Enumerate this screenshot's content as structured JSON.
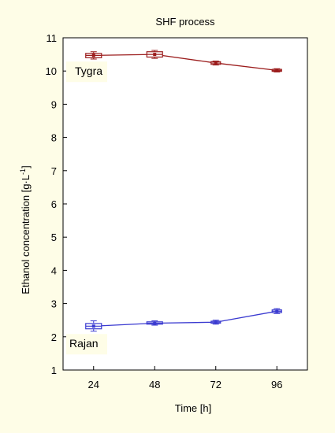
{
  "chart_data": {
    "type": "line",
    "title": "SHF process",
    "xlabel": "Time [h]",
    "ylabel_main": "Ethanol concentration ",
    "ylabel_unit": "[g·L",
    "ylabel_exp": "-1",
    "ylabel_close": "]",
    "x": [
      24,
      48,
      72,
      96
    ],
    "x_tick_labels": [
      "24",
      "48",
      "72",
      "96"
    ],
    "ylim": [
      1,
      11
    ],
    "y_ticks": [
      1,
      2,
      3,
      4,
      5,
      6,
      7,
      8,
      9,
      10,
      11
    ],
    "y_tick_labels": [
      "1",
      "2",
      "3",
      "4",
      "5",
      "6",
      "7",
      "8",
      "9",
      "10",
      "11"
    ],
    "grid": false,
    "series": [
      {
        "name": "Tygra",
        "color": "#9b1c1c",
        "values": [
          10.47,
          10.5,
          10.24,
          10.02
        ],
        "box_low": [
          10.4,
          10.42,
          10.2,
          9.99
        ],
        "box_high": [
          10.53,
          10.58,
          10.28,
          10.05
        ],
        "whisker_low": [
          10.36,
          10.38,
          10.18,
          9.97
        ],
        "whisker_high": [
          10.58,
          10.62,
          10.3,
          10.07
        ]
      },
      {
        "name": "Rajan",
        "color": "#3a3ad0",
        "values": [
          2.32,
          2.41,
          2.44,
          2.77
        ],
        "box_low": [
          2.24,
          2.38,
          2.41,
          2.73
        ],
        "box_high": [
          2.4,
          2.45,
          2.47,
          2.81
        ],
        "whisker_low": [
          2.17,
          2.35,
          2.38,
          2.7
        ],
        "whisker_high": [
          2.48,
          2.48,
          2.5,
          2.85
        ]
      }
    ]
  }
}
